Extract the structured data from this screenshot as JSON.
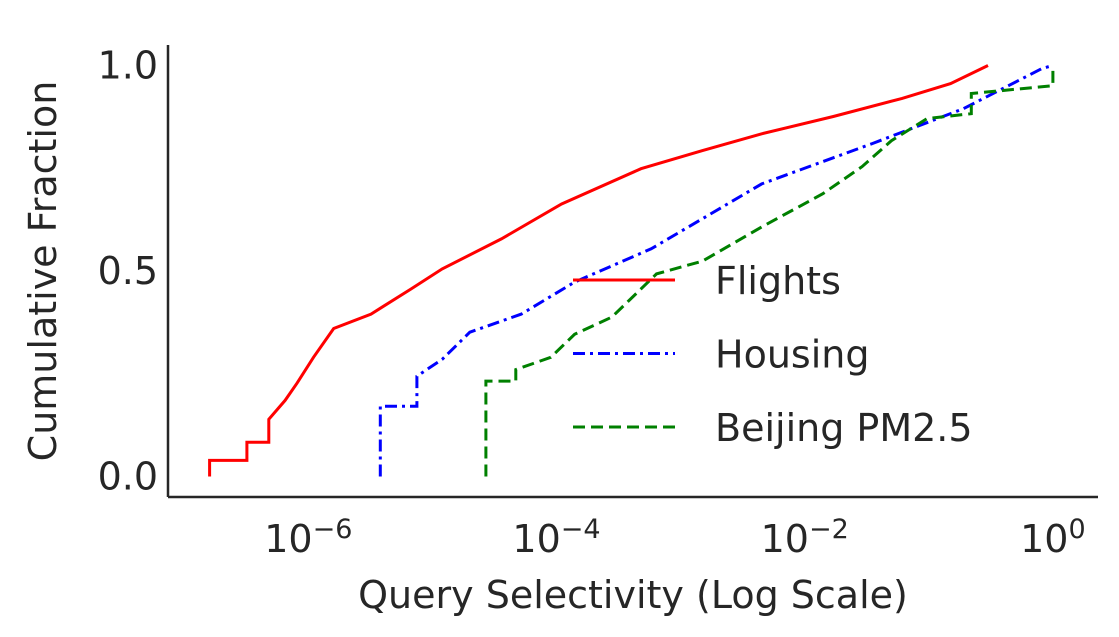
{
  "chart_data": {
    "type": "line",
    "xlabel": "Query Selectivity (Log Scale)",
    "ylabel": "Cumulative Fraction",
    "xscale": "log",
    "xlim": [
      7.4e-08,
      2.31
    ],
    "ylim": [
      -0.05,
      1.05
    ],
    "xticks": [
      {
        "value": 1e-06,
        "label": "10−6"
      },
      {
        "value": 0.0001,
        "label": "10−4"
      },
      {
        "value": 0.01,
        "label": "10−2"
      },
      {
        "value": 1,
        "label": "100"
      }
    ],
    "yticks": [
      {
        "value": 0,
        "label": "0.0"
      },
      0.5,
      {
        "value": 1,
        "label": "1.0"
      }
    ],
    "grid": false,
    "legend": "lower right",
    "series": [
      {
        "name": "Flights",
        "color": "#ff0000",
        "linestyle": "solid",
        "x": [
          1.6e-07,
          1.6e-07,
          3.2e-07,
          3.2e-07,
          4.8e-07,
          4.8e-07,
          6.5e-07,
          8.1e-07,
          1.1e-06,
          1.6e-06,
          3.2e-06,
          6.7e-06,
          1.2e-05,
          3.6e-05,
          0.00011,
          0.00048,
          0.0015,
          0.0045,
          0.017,
          0.061,
          0.15,
          0.3
        ],
        "values": [
          0,
          0.039,
          0.039,
          0.083,
          0.083,
          0.139,
          0.185,
          0.227,
          0.29,
          0.36,
          0.395,
          0.456,
          0.505,
          0.578,
          0.663,
          0.749,
          0.793,
          0.834,
          0.876,
          0.92,
          0.956,
          1.0
        ]
      },
      {
        "name": "Housing",
        "color": "#0000ff",
        "linestyle": "dashdot",
        "x": [
          3.8e-06,
          3.8e-06,
          7.5e-06,
          7.5e-06,
          1.2e-05,
          2e-05,
          5.2e-05,
          0.00014,
          0.00058,
          0.0045,
          0.035,
          0.19,
          0.82,
          1.0
        ],
        "values": [
          0,
          0.171,
          0.171,
          0.244,
          0.285,
          0.351,
          0.395,
          0.473,
          0.554,
          0.712,
          0.81,
          0.895,
          0.993,
          1.0
        ]
      },
      {
        "name": "Beijing PM2.5",
        "color": "#008000",
        "linestyle": "dashed",
        "x": [
          2.7e-05,
          2.7e-05,
          4.7e-05,
          4.7e-05,
          9e-05,
          0.00014,
          0.00028,
          0.00064,
          0.0015,
          0.0045,
          0.014,
          0.029,
          0.05,
          0.097,
          0.22,
          0.22,
          1.0,
          1.0
        ],
        "values": [
          0,
          0.232,
          0.232,
          0.26,
          0.29,
          0.346,
          0.388,
          0.493,
          0.524,
          0.607,
          0.688,
          0.754,
          0.817,
          0.871,
          0.883,
          0.932,
          0.951,
          1.0
        ]
      }
    ]
  }
}
